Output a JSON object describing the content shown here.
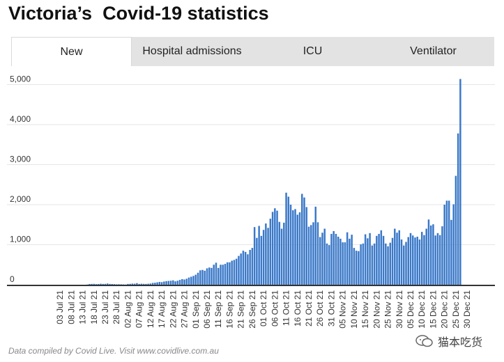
{
  "title": "Victoria’s  Covid-19 statistics",
  "tabs": [
    {
      "label": "New",
      "active": true
    },
    {
      "label": "Hospital admissions",
      "active": false
    },
    {
      "label": "ICU",
      "active": false
    },
    {
      "label": "Ventilator",
      "active": false
    }
  ],
  "source_note": "Data compiled by Covid Live. Visit www.covidlive.com.au",
  "watermark_text": "猫本吃货",
  "colors": {
    "bar": "#3a78c8",
    "axis": "#333333",
    "grid": "#e6e6e6"
  },
  "chart_data": {
    "type": "bar",
    "title": "",
    "xlabel": "",
    "ylabel": "",
    "ylim": [
      0,
      5200
    ],
    "yticks": [
      0,
      1000,
      2000,
      3000,
      4000,
      5000
    ],
    "ytick_labels": [
      "0",
      "1,000",
      "2,000",
      "3,000",
      "4,000",
      "5,000"
    ],
    "grid": true,
    "start_date": "2021-07-01",
    "xtick_labels": [
      "03 Jul 21",
      "08 Jul 21",
      "13 Jul 21",
      "18 Jul 21",
      "23 Jul 21",
      "28 Jul 21",
      "02 Aug 21",
      "07 Aug 21",
      "12 Aug 21",
      "17 Aug 21",
      "22 Aug 21",
      "27 Aug 21",
      "01 Sep 21",
      "06 Sep 21",
      "11 Sep 21",
      "16 Sep 21",
      "21 Sep 21",
      "26 Sep 21",
      "01 Oct 21",
      "06 Oct 21",
      "11 Oct 21",
      "16 Oct 21",
      "21 Oct 21",
      "26 Oct 21",
      "31 Oct 21",
      "05 Nov 21",
      "10 Nov 21",
      "15 Nov 21",
      "20 Nov 21",
      "25 Nov 21",
      "30 Nov 21",
      "05 Dec 21",
      "10 Dec 21",
      "15 Dec 21",
      "20 Dec 21",
      "25 Dec 21",
      "30 Dec 21"
    ],
    "xtick_positions": [
      2,
      7,
      12,
      17,
      22,
      27,
      32,
      37,
      42,
      47,
      52,
      57,
      62,
      67,
      72,
      77,
      82,
      87,
      92,
      97,
      102,
      107,
      112,
      117,
      122,
      127,
      132,
      137,
      142,
      147,
      152,
      157,
      162,
      167,
      172,
      177,
      182
    ],
    "values": [
      0,
      0,
      0,
      0,
      0,
      0,
      0,
      0,
      0,
      0,
      0,
      0,
      0,
      0,
      5,
      18,
      20,
      22,
      16,
      18,
      25,
      20,
      22,
      30,
      20,
      18,
      15,
      10,
      12,
      10,
      8,
      5,
      20,
      22,
      28,
      25,
      40,
      20,
      25,
      22,
      20,
      25,
      30,
      45,
      50,
      60,
      70,
      65,
      80,
      90,
      95,
      100,
      110,
      85,
      100,
      120,
      140,
      130,
      150,
      180,
      200,
      220,
      250,
      300,
      360,
      370,
      350,
      410,
      430,
      420,
      500,
      550,
      420,
      500,
      500,
      520,
      560,
      560,
      600,
      620,
      650,
      720,
      780,
      850,
      820,
      760,
      870,
      920,
      1440,
      1170,
      1470,
      1220,
      1370,
      1530,
      1420,
      1650,
      1820,
      1910,
      1850,
      1570,
      1400,
      1550,
      2300,
      2200,
      2000,
      1860,
      1890,
      1750,
      1810,
      2270,
      2180,
      1940,
      1450,
      1490,
      1560,
      1950,
      1560,
      1190,
      1300,
      1400,
      1030,
      990,
      1270,
      1340,
      1270,
      1200,
      1150,
      1060,
      1060,
      1310,
      1150,
      1250,
      920,
      850,
      840,
      1010,
      1030,
      1260,
      1160,
      1290,
      980,
      1030,
      1220,
      1270,
      1360,
      1220,
      1030,
      960,
      1050,
      1170,
      1400,
      1300,
      1360,
      1130,
      980,
      1070,
      1190,
      1290,
      1230,
      1180,
      1200,
      1130,
      1320,
      1240,
      1400,
      1630,
      1480,
      1510,
      1230,
      1290,
      1240,
      1460,
      2000,
      2100,
      2100,
      1620,
      2010,
      2720,
      3780,
      5140
    ]
  }
}
